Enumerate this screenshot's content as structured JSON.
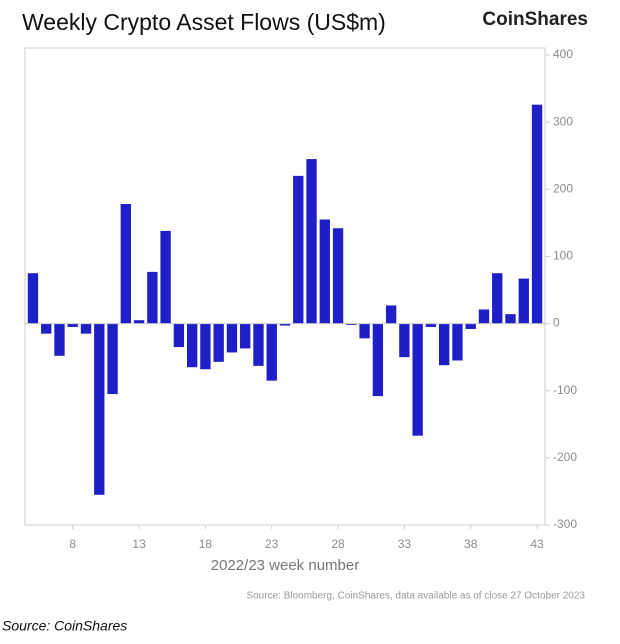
{
  "chart_data": {
    "type": "bar",
    "title": "Weekly Crypto Asset Flows (US$m)",
    "brand": "CoinShares",
    "x_label": "2022/23 week number",
    "note": "Source: Bloomberg, CoinShares, data available as of close 27 October 2023",
    "footer": "Source: CoinShares",
    "x": [
      5,
      6,
      7,
      8,
      9,
      10,
      11,
      12,
      13,
      14,
      15,
      16,
      17,
      18,
      19,
      20,
      21,
      22,
      23,
      24,
      25,
      26,
      27,
      28,
      29,
      30,
      31,
      32,
      33,
      34,
      35,
      36,
      37,
      38,
      39,
      40,
      41,
      42,
      43
    ],
    "values": [
      75,
      -15,
      -48,
      -5,
      -15,
      -255,
      -105,
      178,
      5,
      77,
      138,
      -35,
      -65,
      -68,
      -57,
      -43,
      -37,
      -63,
      -85,
      -3,
      220,
      245,
      155,
      142,
      -2,
      -22,
      -108,
      27,
      -50,
      -167,
      -5,
      -62,
      -55,
      -8,
      21,
      75,
      14,
      67,
      326
    ],
    "color": "#1f1fc8",
    "xlim": [
      4.4,
      43.6
    ],
    "xticks": [
      8,
      13,
      18,
      23,
      28,
      33,
      38,
      43
    ],
    "ylim": [
      -300,
      400
    ],
    "yticks": [
      -300,
      -200,
      -100,
      0,
      100,
      200,
      300,
      400
    ]
  }
}
